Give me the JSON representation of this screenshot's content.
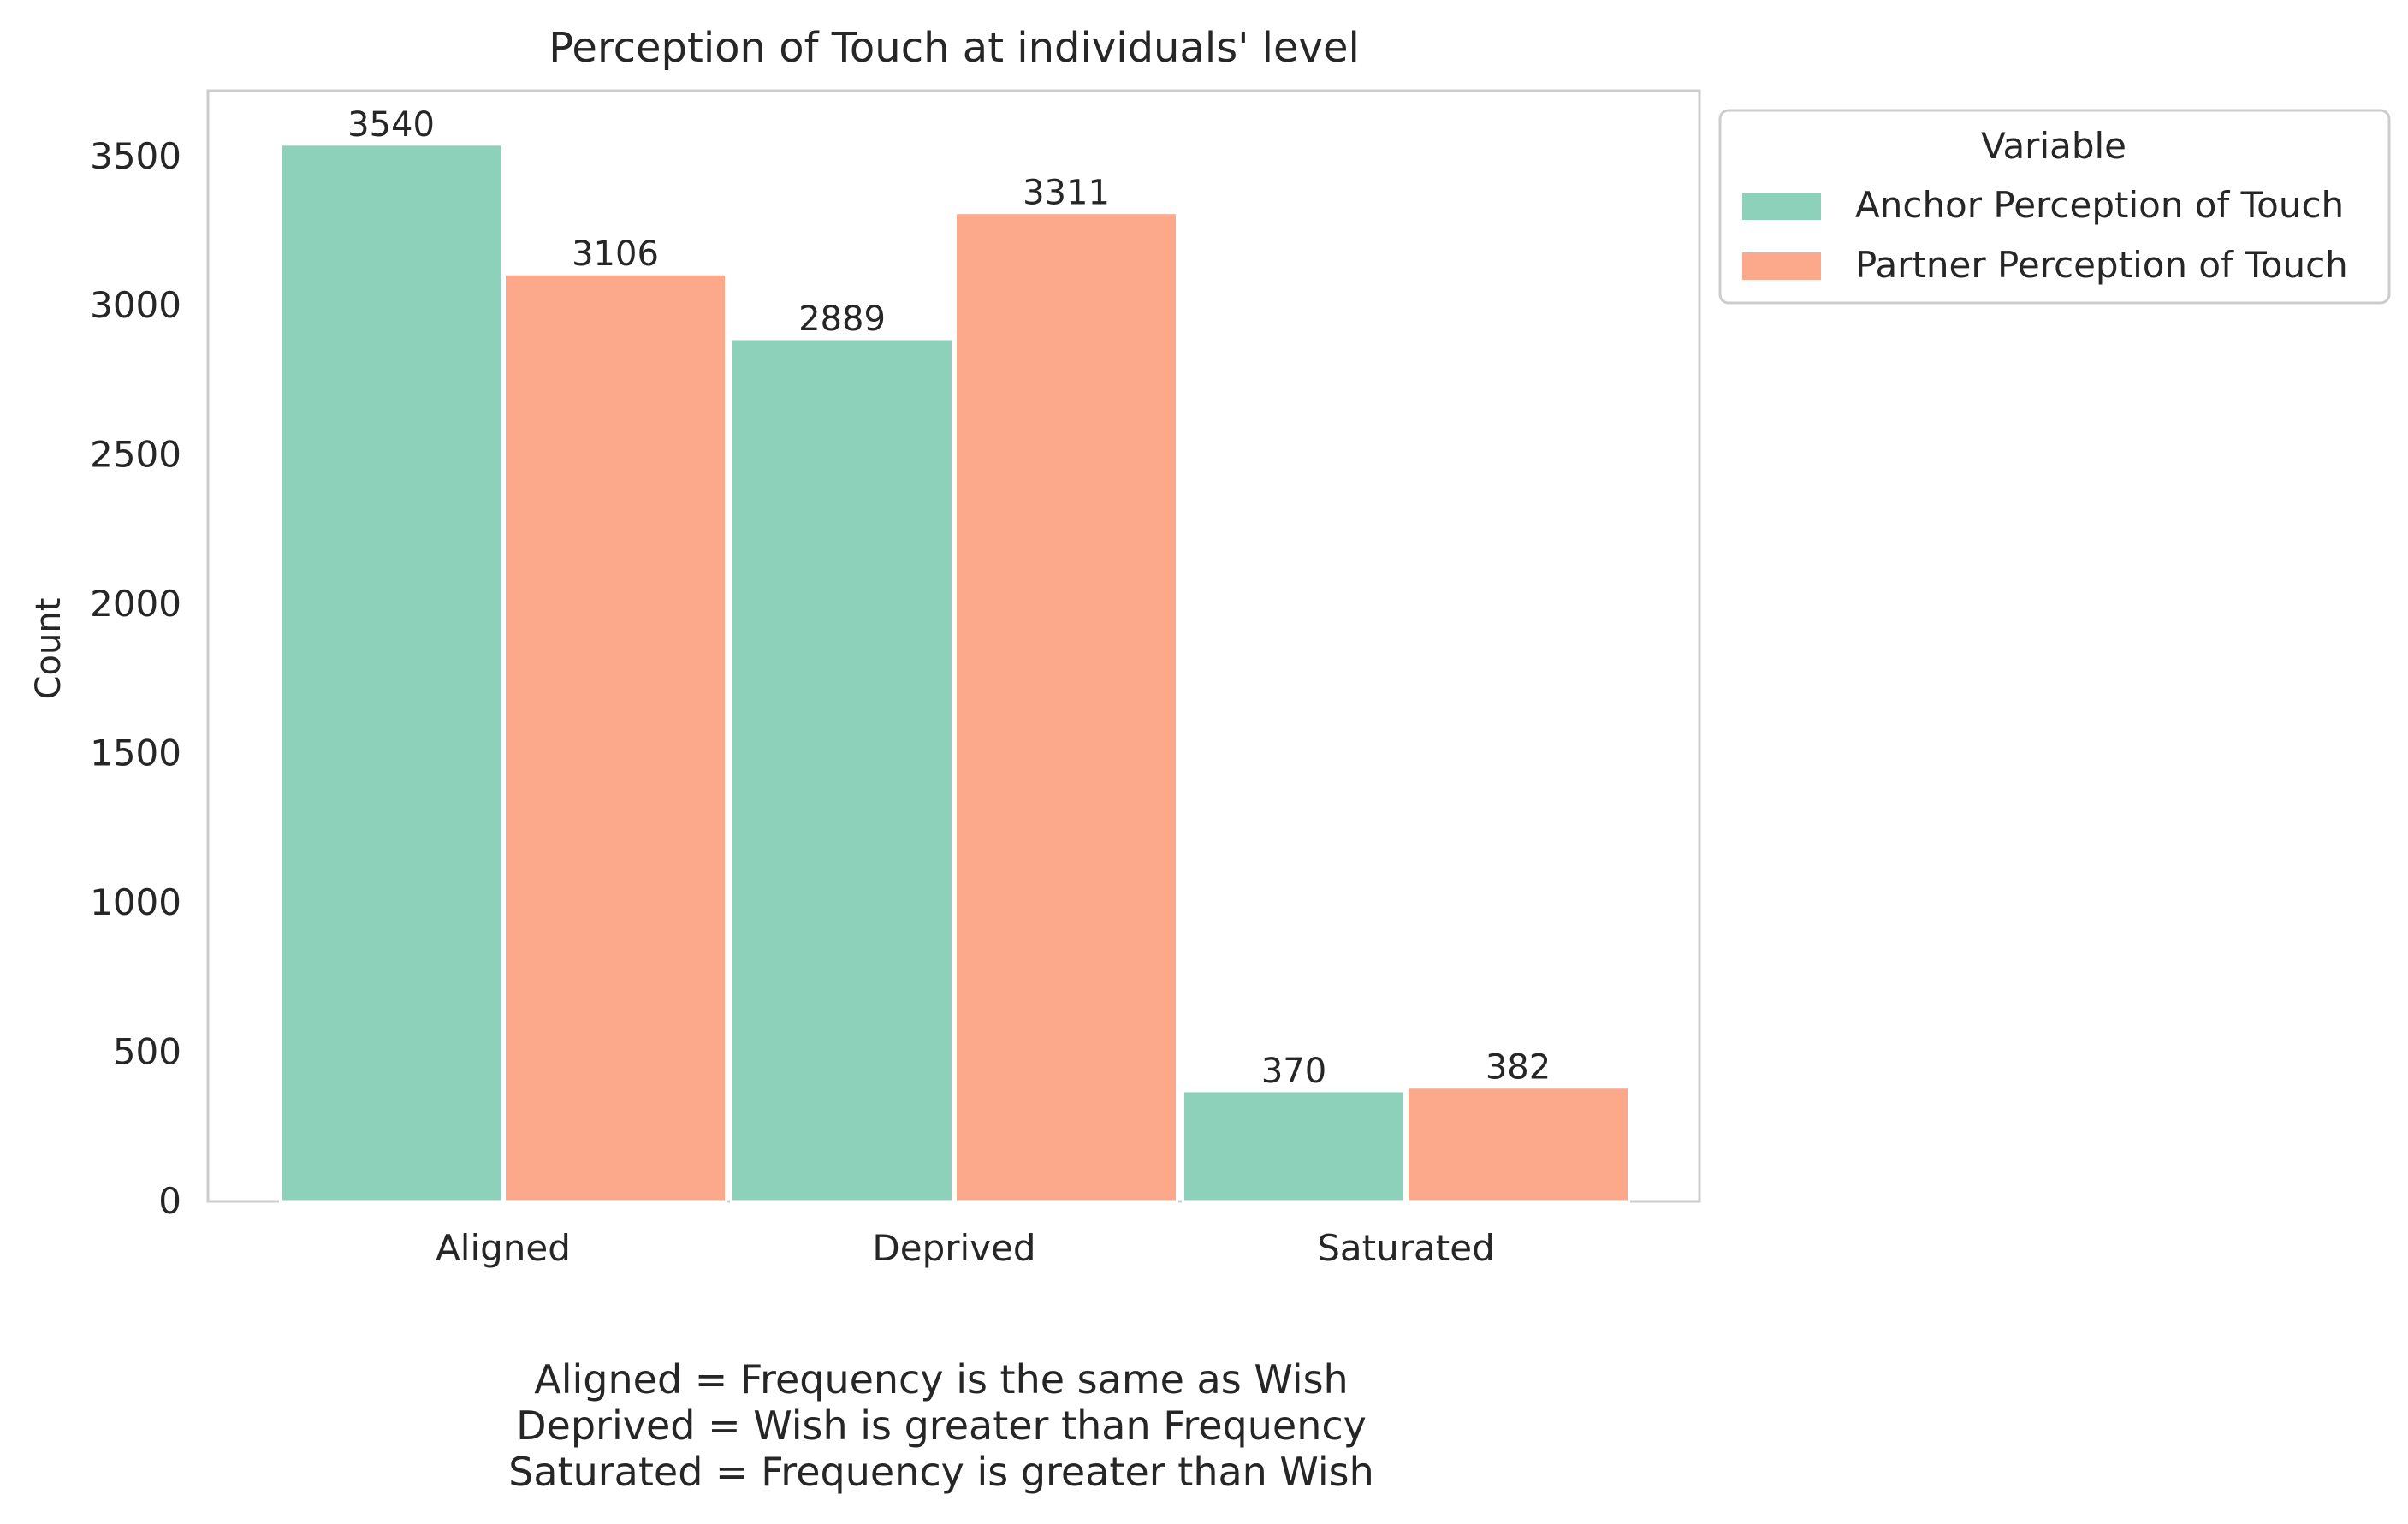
{
  "chart_data": {
    "type": "bar",
    "title": "Perception of Touch at individuals' level",
    "xlabel": "",
    "ylabel": "Count",
    "categories": [
      "Aligned",
      "Deprived",
      "Saturated"
    ],
    "series": [
      {
        "name": "Anchor Perception of Touch",
        "values": [
          3540,
          2889,
          370
        ],
        "color": "#8dd1bb"
      },
      {
        "name": "Partner Perception of Touch",
        "values": [
          3106,
          3311,
          382
        ],
        "color": "#fca98b"
      }
    ],
    "ylim": [
      0,
      3720
    ],
    "yticks": [
      0,
      500,
      1000,
      1500,
      2000,
      2500,
      3000,
      3500
    ],
    "grid": false,
    "legend": {
      "title": "Variable",
      "placement": "outside-top-right"
    },
    "annotations": [
      "Aligned = Frequency is the same as Wish",
      "Deprived = Wish is greater than Frequency",
      "Saturated = Frequency is greater than Wish"
    ]
  }
}
